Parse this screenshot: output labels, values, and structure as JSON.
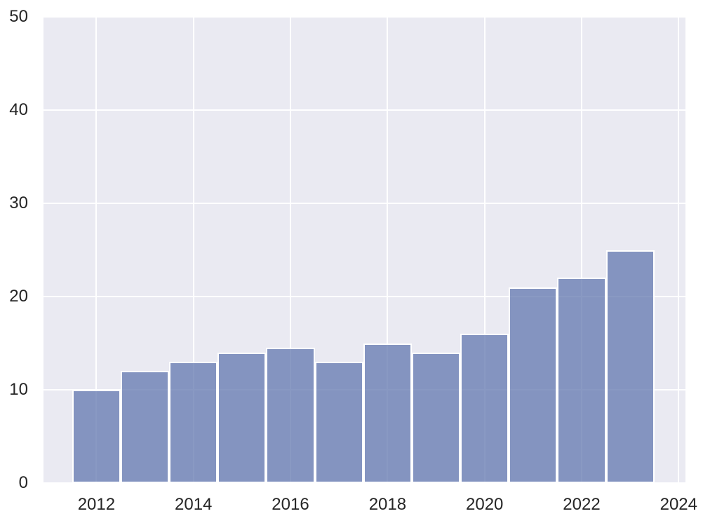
{
  "figure": {
    "figure_background": "#ffffff",
    "plot_background": "#eaeaf2",
    "gridline_color": "#ffffff",
    "bar_color": "#6177af",
    "bar_alpha": 0.75,
    "bar_edge_color": "#ffffff",
    "tick_label_color": "#262626"
  },
  "chart_data": {
    "type": "bar",
    "subtype": "histogram-style yearly bars, seaborn darkgrid theme",
    "title": "",
    "xlabel": "",
    "ylabel": "",
    "categories": [
      2012,
      2013,
      2014,
      2015,
      2016,
      2017,
      2018,
      2019,
      2020,
      2021,
      2022,
      2023
    ],
    "values": [
      10,
      12,
      13,
      14,
      14.5,
      13,
      15,
      14,
      16,
      21,
      22,
      25
    ],
    "bar_width": 1.0,
    "x_ticks": [
      2012,
      2014,
      2016,
      2018,
      2020,
      2022,
      2024
    ],
    "x_tick_labels": [
      "2012",
      "2014",
      "2016",
      "2018",
      "2020",
      "2022",
      "2024"
    ],
    "y_ticks": [
      0,
      10,
      20,
      30,
      40,
      50
    ],
    "y_tick_labels": [
      "0",
      "10",
      "20",
      "30",
      "40",
      "50"
    ],
    "xlim": [
      2010.91,
      2024.14
    ],
    "ylim": [
      0,
      50
    ],
    "grid": true,
    "legend": "none"
  }
}
